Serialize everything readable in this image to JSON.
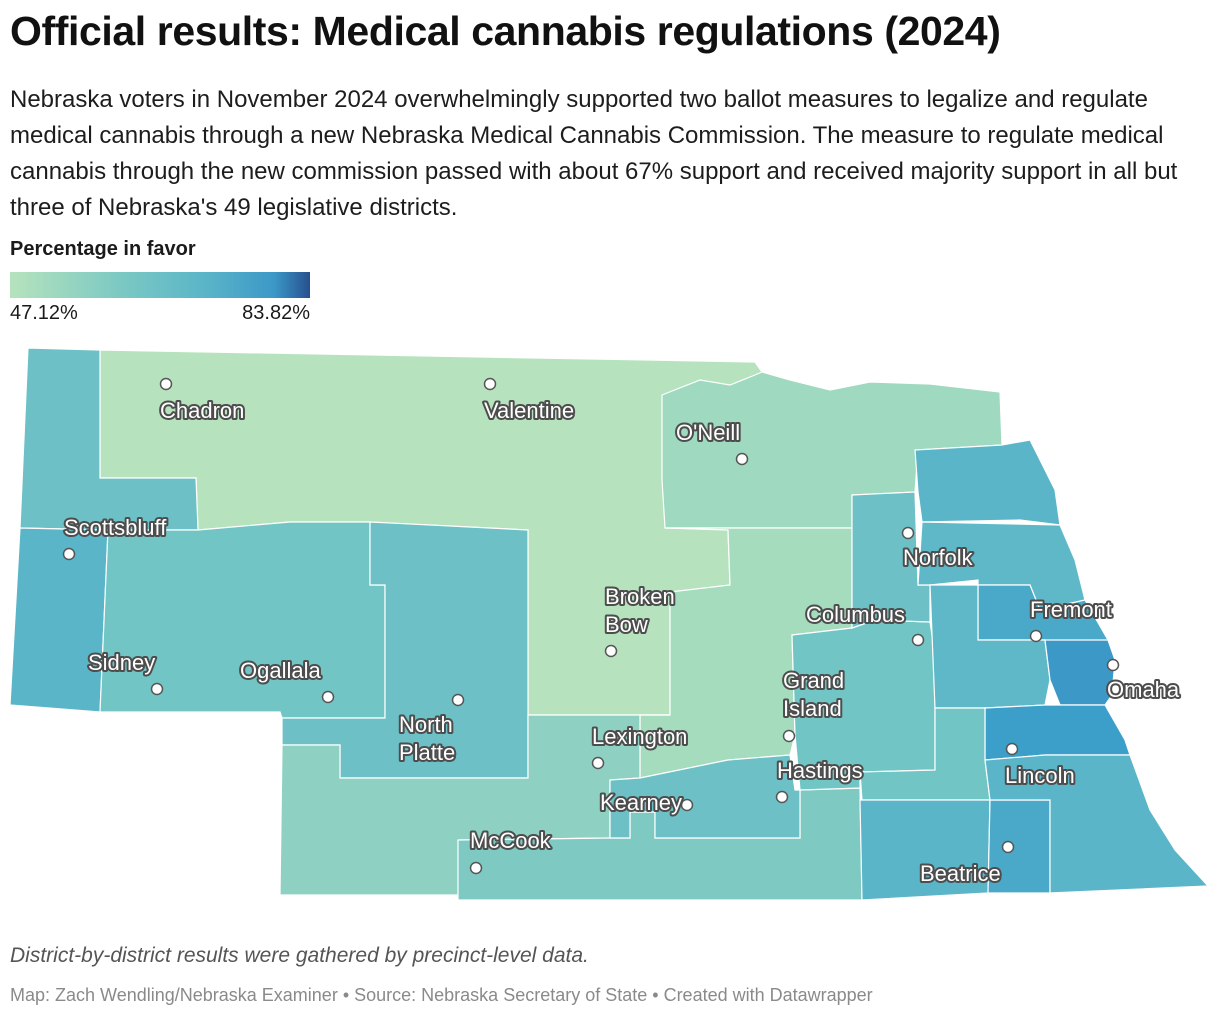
{
  "title": "Official results: Medical cannabis regulations (2024)",
  "description": "Nebraska voters in November 2024 overwhelmingly supported two ballot measures to legalize and regulate medical cannabis through a new Nebraska Medical Cannabis Commission. The measure to regulate medical cannabis through the new commission passed with about 67% support and received majority support in all but three of Nebraska's 49 legislative districts.",
  "legend": {
    "title": "Percentage in favor",
    "min_label": "47.12%",
    "max_label": "83.82%",
    "colors": [
      "#b6e3bd",
      "#7ecac3",
      "#5ab5c8",
      "#3c98c7",
      "#26508f"
    ]
  },
  "cities": [
    {
      "name": "Chadron",
      "lines": [
        "Chadron"
      ]
    },
    {
      "name": "Valentine",
      "lines": [
        "Valentine"
      ]
    },
    {
      "name": "O'Neill",
      "lines": [
        "O'Neill"
      ]
    },
    {
      "name": "Scottsbluff",
      "lines": [
        "Scottsbluff"
      ]
    },
    {
      "name": "Norfolk",
      "lines": [
        "Norfolk"
      ]
    },
    {
      "name": "Broken Bow",
      "lines": [
        "Broken",
        "Bow"
      ]
    },
    {
      "name": "Columbus",
      "lines": [
        "Columbus"
      ]
    },
    {
      "name": "Fremont",
      "lines": [
        "Fremont"
      ]
    },
    {
      "name": "Sidney",
      "lines": [
        "Sidney"
      ]
    },
    {
      "name": "Ogallala",
      "lines": [
        "Ogallala"
      ]
    },
    {
      "name": "Grand Island",
      "lines": [
        "Grand",
        "Island"
      ]
    },
    {
      "name": "Omaha",
      "lines": [
        "Omaha"
      ]
    },
    {
      "name": "North Platte",
      "lines": [
        "North",
        "Platte"
      ]
    },
    {
      "name": "Lexington",
      "lines": [
        "Lexington"
      ]
    },
    {
      "name": "Lincoln",
      "lines": [
        "Lincoln"
      ]
    },
    {
      "name": "Hastings",
      "lines": [
        "Hastings"
      ]
    },
    {
      "name": "Kearney",
      "lines": [
        "Kearney"
      ]
    },
    {
      "name": "McCook",
      "lines": [
        "McCook"
      ]
    },
    {
      "name": "Beatrice",
      "lines": [
        "Beatrice"
      ]
    }
  ],
  "note": "District-by-district results were gathered by precinct-level data.",
  "credit": "Map: Zach Wendling/Nebraska Examiner • Source: Nebraska Secretary of State • Created with Datawrapper"
}
